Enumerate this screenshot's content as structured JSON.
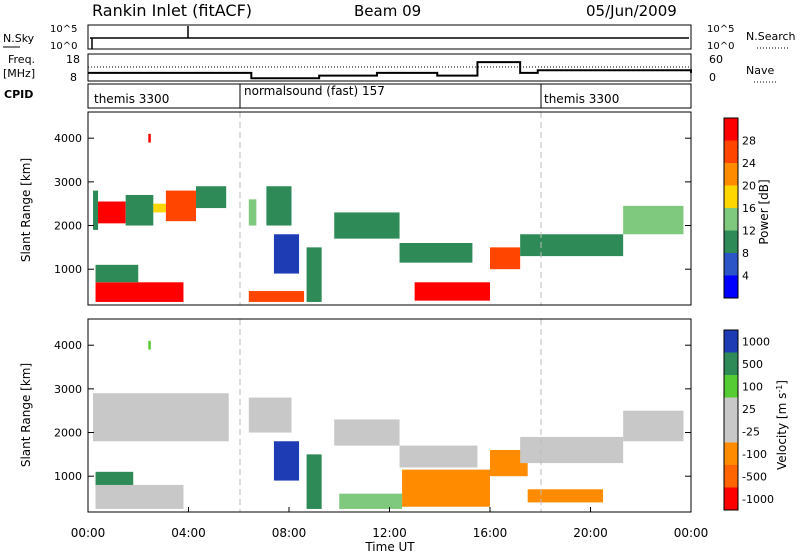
{
  "header": {
    "station": "Rankin Inlet (fitACF)",
    "beam": "Beam 09",
    "date": "05/Jun/2009"
  },
  "noise_panel": {
    "left_label": "N.Sky",
    "right_label": "N.Search",
    "left_ticks": [
      "10^5",
      "10^0"
    ],
    "right_ticks": [
      "10^5",
      "10^0"
    ]
  },
  "freq_panel": {
    "left_label": "Freq.",
    "left_units": "[MHz]",
    "right_label": "Nave",
    "left_ticks": [
      "18",
      "8"
    ],
    "right_ticks": [
      "60",
      "0"
    ]
  },
  "cpid_panel": {
    "label": "CPID",
    "modes": [
      "themis 3300",
      "normalsound (fast) 157",
      "themis 3300"
    ]
  },
  "power_panel": {
    "ylabel": "Slant Range [km]",
    "yticks": [
      "1000",
      "2000",
      "3000",
      "4000"
    ],
    "colorbar_label": "Power [dB]",
    "colorbar_ticks": [
      "4",
      "8",
      "12",
      "16",
      "20",
      "24",
      "28"
    ],
    "colorbar_colors": [
      "#0000ff",
      "#2c55c8",
      "#2e8b57",
      "#7fc97f",
      "#ffd700",
      "#ff8c00",
      "#ff4500",
      "#ff0000"
    ]
  },
  "velocity_panel": {
    "ylabel": "Slant Range [km]",
    "yticks": [
      "1000",
      "2000",
      "3000",
      "4000"
    ],
    "colorbar_label": "Velocity [m s",
    "colorbar_label_sup": "-1",
    "colorbar_label_end": "]",
    "colorbar_ticks": [
      "1000",
      "500",
      "100",
      "25",
      "-25",
      "-100",
      "-500",
      "-1000"
    ],
    "colorbar_colors": [
      "#1e3cb4",
      "#2e8b57",
      "#55cc33",
      "#c8c8c8",
      "#c8c8c8",
      "#ff8c00",
      "#ff6400",
      "#ff0000"
    ]
  },
  "x_axis": {
    "label": "Time UT",
    "ticks": [
      "00:00",
      "04:00",
      "08:00",
      "12:00",
      "16:00",
      "20:00",
      "00:00"
    ]
  },
  "chart_data": {
    "type": "heatmap",
    "x_range_hours": [
      0,
      24
    ],
    "y_range_km": [
      180,
      4600
    ],
    "mode_changes_hours": [
      6,
      18
    ],
    "power_cells": [
      {
        "t": [
          0.3,
          1.5
        ],
        "r": [
          2050,
          2550
        ],
        "c": "#ff0000"
      },
      {
        "t": [
          0.2,
          0.4
        ],
        "r": [
          1900,
          2800
        ],
        "c": "#2e8b57"
      },
      {
        "t": [
          1.5,
          2.6
        ],
        "r": [
          2000,
          2700
        ],
        "c": "#2e8b57"
      },
      {
        "t": [
          2.6,
          3.1
        ],
        "r": [
          2300,
          2500
        ],
        "c": "#ffd700"
      },
      {
        "t": [
          3.1,
          4.3
        ],
        "r": [
          2100,
          2800
        ],
        "c": "#ff4500"
      },
      {
        "t": [
          4.3,
          5.5
        ],
        "r": [
          2400,
          2900
        ],
        "c": "#2e8b57"
      },
      {
        "t": [
          0.3,
          3.8
        ],
        "r": [
          250,
          700
        ],
        "c": "#ff0000"
      },
      {
        "t": [
          0.3,
          2.0
        ],
        "r": [
          700,
          1100
        ],
        "c": "#2e8b57"
      },
      {
        "t": [
          6.4,
          6.7
        ],
        "r": [
          2000,
          2600
        ],
        "c": "#7fc97f"
      },
      {
        "t": [
          7.1,
          8.1
        ],
        "r": [
          2000,
          2900
        ],
        "c": "#2e8b57"
      },
      {
        "t": [
          6.4,
          8.6
        ],
        "r": [
          250,
          500
        ],
        "c": "#ff4500"
      },
      {
        "t": [
          7.4,
          8.4
        ],
        "r": [
          900,
          1800
        ],
        "c": "#1e3cb4"
      },
      {
        "t": [
          9.8,
          12.4
        ],
        "r": [
          1700,
          2300
        ],
        "c": "#2e8b57"
      },
      {
        "t": [
          12.4,
          15.3
        ],
        "r": [
          1150,
          1600
        ],
        "c": "#2e8b57"
      },
      {
        "t": [
          13.0,
          16.0
        ],
        "r": [
          280,
          700
        ],
        "c": "#ff0000"
      },
      {
        "t": [
          16.0,
          17.2
        ],
        "r": [
          1000,
          1500
        ],
        "c": "#ff4500"
      },
      {
        "t": [
          17.2,
          21.3
        ],
        "r": [
          1300,
          1800
        ],
        "c": "#2e8b57"
      },
      {
        "t": [
          21.3,
          23.7
        ],
        "r": [
          1800,
          2450
        ],
        "c": "#7fc97f"
      },
      {
        "t": [
          8.7,
          9.3
        ],
        "r": [
          250,
          1500
        ],
        "c": "#2e8b57"
      },
      {
        "t": [
          2.4,
          2.5
        ],
        "r": [
          3900,
          4100
        ],
        "c": "#ff0000"
      }
    ],
    "velocity_cells": [
      {
        "t": [
          0.2,
          5.6
        ],
        "r": [
          1800,
          2900
        ],
        "c": "#c8c8c8"
      },
      {
        "t": [
          0.3,
          1.8
        ],
        "r": [
          700,
          1100
        ],
        "c": "#2e8b57"
      },
      {
        "t": [
          0.3,
          3.8
        ],
        "r": [
          250,
          800
        ],
        "c": "#c8c8c8"
      },
      {
        "t": [
          6.4,
          8.1
        ],
        "r": [
          2000,
          2800
        ],
        "c": "#c8c8c8"
      },
      {
        "t": [
          7.4,
          8.4
        ],
        "r": [
          900,
          1800
        ],
        "c": "#1e3cb4"
      },
      {
        "t": [
          9.8,
          12.4
        ],
        "r": [
          1700,
          2300
        ],
        "c": "#c8c8c8"
      },
      {
        "t": [
          12.4,
          15.5
        ],
        "r": [
          1200,
          1700
        ],
        "c": "#c8c8c8"
      },
      {
        "t": [
          12.5,
          16.0
        ],
        "r": [
          300,
          1150
        ],
        "c": "#ff8c00"
      },
      {
        "t": [
          16.0,
          17.5
        ],
        "r": [
          1000,
          1600
        ],
        "c": "#ff8c00"
      },
      {
        "t": [
          17.2,
          21.3
        ],
        "r": [
          1300,
          1900
        ],
        "c": "#c8c8c8"
      },
      {
        "t": [
          21.3,
          23.7
        ],
        "r": [
          1800,
          2500
        ],
        "c": "#c8c8c8"
      },
      {
        "t": [
          8.7,
          9.3
        ],
        "r": [
          250,
          1500
        ],
        "c": "#2e8b57"
      },
      {
        "t": [
          17.5,
          20.5
        ],
        "r": [
          400,
          700
        ],
        "c": "#ff8c00"
      },
      {
        "t": [
          10.0,
          12.5
        ],
        "r": [
          250,
          600
        ],
        "c": "#7fc97f"
      },
      {
        "t": [
          2.4,
          2.5
        ],
        "r": [
          3900,
          4100
        ],
        "c": "#55cc33"
      }
    ],
    "freq_profile": [
      {
        "t": 0,
        "f": 11
      },
      {
        "t": 6,
        "f": 11
      },
      {
        "t": 6.5,
        "f": 9
      },
      {
        "t": 9.2,
        "f": 10
      },
      {
        "t": 11.5,
        "f": 11
      },
      {
        "t": 13.9,
        "f": 10
      },
      {
        "t": 15.5,
        "f": 15
      },
      {
        "t": 17.2,
        "f": 11
      },
      {
        "t": 17.9,
        "f": 12
      },
      {
        "t": 24,
        "f": 11
      }
    ]
  }
}
